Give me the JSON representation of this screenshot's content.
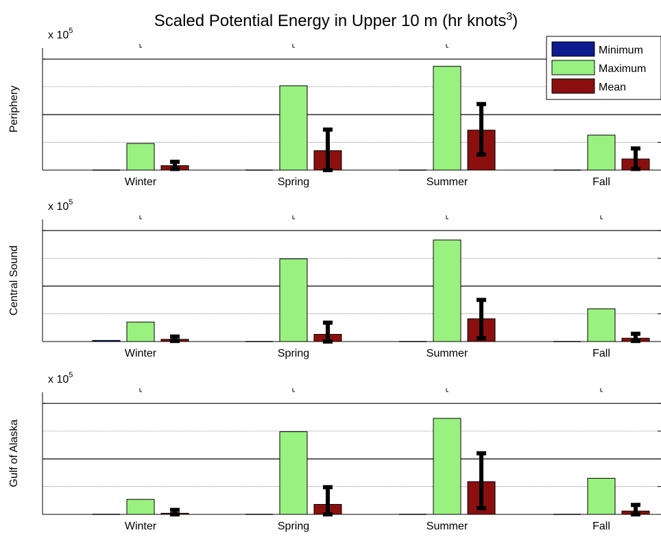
{
  "chart_data": {
    "type": "bar",
    "title": "Scaled Potential Energy in Upper 10 m (hr knots",
    "title_superscript": "3",
    "title_suffix": ")",
    "categories": [
      "Winter",
      "Spring",
      "Summer",
      "Fall"
    ],
    "series_names": [
      "Minimum",
      "Maximum",
      "Mean"
    ],
    "colors": {
      "minimum": "#0b1a8c",
      "maximum": "#99f17f",
      "mean": "#8b0f0f",
      "error": "#000000"
    },
    "ylim": [
      0,
      11
    ],
    "yticks": [
      "0",
      "5",
      "10"
    ],
    "exponent_label": "x 10",
    "exponent_power": "5",
    "legend_position": "top-right",
    "legend": [
      "Minimum",
      "Maximum",
      "Mean"
    ],
    "subplots": [
      {
        "ylabel": "Periphery",
        "series": [
          {
            "name": "Minimum",
            "values": [
              0.0,
              0.0,
              0.0,
              0.0
            ]
          },
          {
            "name": "Maximum",
            "values": [
              2.4,
              7.6,
              9.35,
              3.15
            ]
          },
          {
            "name": "Mean",
            "values": [
              0.4,
              1.75,
              3.6,
              1.0
            ],
            "err_low": [
              0.1,
              0.0,
              1.4,
              0.1
            ],
            "err_high": [
              0.75,
              3.65,
              5.95,
              1.95
            ]
          }
        ]
      },
      {
        "ylabel": "Central Sound",
        "series": [
          {
            "name": "Minimum",
            "values": [
              0.1,
              0.0,
              0.0,
              0.0
            ]
          },
          {
            "name": "Maximum",
            "values": [
              1.75,
              7.45,
              9.15,
              2.95
            ]
          },
          {
            "name": "Mean",
            "values": [
              0.2,
              0.65,
              2.05,
              0.3
            ],
            "err_low": [
              0.05,
              0.0,
              0.3,
              0.05
            ],
            "err_high": [
              0.45,
              1.7,
              3.75,
              0.7
            ]
          }
        ]
      },
      {
        "ylabel": "Gulf of Alaska",
        "series": [
          {
            "name": "Minimum",
            "values": [
              0.0,
              0.0,
              0.0,
              0.0
            ]
          },
          {
            "name": "Maximum",
            "values": [
              1.35,
              7.45,
              8.65,
              3.25
            ]
          },
          {
            "name": "Mean",
            "values": [
              0.1,
              0.9,
              2.95,
              0.3
            ],
            "err_low": [
              0.0,
              0.0,
              0.55,
              0.0
            ],
            "err_high": [
              0.4,
              2.45,
              5.5,
              0.85
            ]
          }
        ]
      }
    ]
  }
}
